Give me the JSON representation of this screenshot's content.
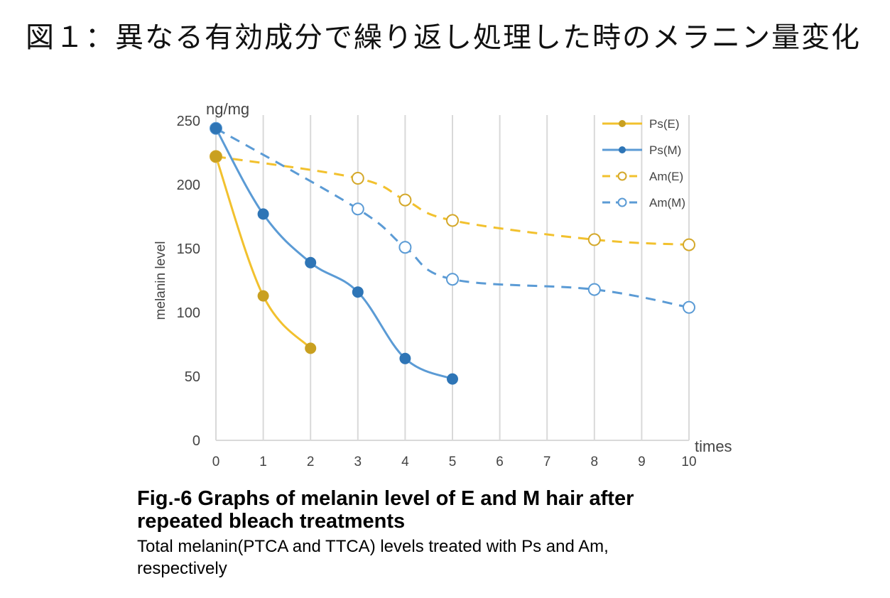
{
  "heading": "図１：異なる有効成分で繰り返し処理した時のメラニン量変化",
  "chart_data": {
    "type": "line",
    "y_unit_label": "ng/mg",
    "ylabel": "melanin level",
    "xlabel": "times",
    "xlim": [
      0,
      10
    ],
    "ylim": [
      0,
      250
    ],
    "x_ticks": [
      0,
      1,
      2,
      3,
      4,
      5,
      6,
      7,
      8,
      9,
      10
    ],
    "y_ticks": [
      0,
      50,
      100,
      150,
      200,
      250
    ],
    "grid": "vertical",
    "legend_position": "top-right",
    "series": [
      {
        "name": "Ps(E)",
        "color": "#F2C12E",
        "marker_color": "#C9A020",
        "style": "solid",
        "marker": "filled",
        "x": [
          0,
          1,
          2
        ],
        "y": [
          222,
          113,
          72
        ]
      },
      {
        "name": "Ps(M)",
        "color": "#5B9BD5",
        "marker_color": "#2E75B6",
        "style": "solid",
        "marker": "filled",
        "x": [
          0,
          1,
          2,
          3,
          4,
          5
        ],
        "y": [
          244,
          177,
          139,
          116,
          64,
          48
        ]
      },
      {
        "name": "Am(E)",
        "color": "#F2C12E",
        "marker_color": "#D4A82A",
        "style": "dashed",
        "marker": "open",
        "x": [
          0,
          3,
          4,
          5,
          8,
          10
        ],
        "y": [
          222,
          205,
          188,
          172,
          157,
          153
        ]
      },
      {
        "name": "Am(M)",
        "color": "#5B9BD5",
        "marker_color": "#5B9BD5",
        "style": "dashed",
        "marker": "open",
        "x": [
          0,
          3,
          4,
          5,
          8,
          10
        ],
        "y": [
          244,
          181,
          151,
          126,
          118,
          104
        ]
      }
    ]
  },
  "caption": {
    "title_line1": "Fig.-6 Graphs of melanin level of E and M hair  after",
    "title_line2": "repeated bleach treatments",
    "sub_line1": "Total melanin(PTCA and TTCA) levels treated with Ps and Am,",
    "sub_line2": "respectively"
  }
}
